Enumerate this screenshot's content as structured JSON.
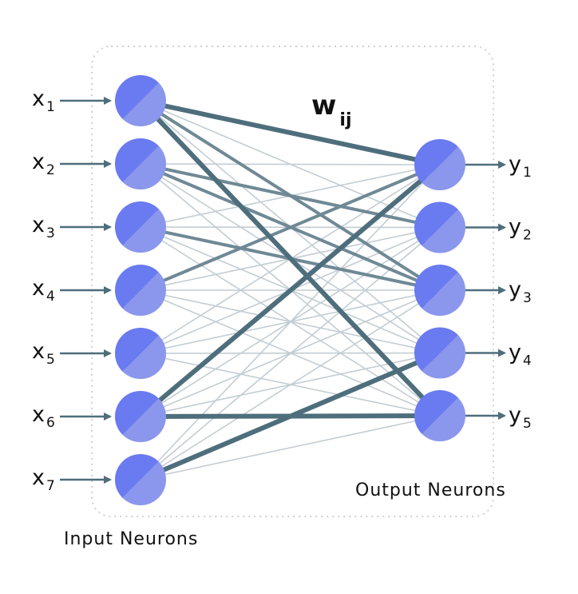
{
  "diagram": {
    "weight_label": {
      "main": "w",
      "sub": "ij"
    },
    "input_caption": "Input Neurons",
    "output_caption": "Output Neurons",
    "inputs": [
      {
        "main": "x",
        "sub": "1"
      },
      {
        "main": "x",
        "sub": "2"
      },
      {
        "main": "x",
        "sub": "3"
      },
      {
        "main": "x",
        "sub": "4"
      },
      {
        "main": "x",
        "sub": "5"
      },
      {
        "main": "x",
        "sub": "6"
      },
      {
        "main": "x",
        "sub": "7"
      }
    ],
    "outputs": [
      {
        "main": "y",
        "sub": "1"
      },
      {
        "main": "y",
        "sub": "2"
      },
      {
        "main": "y",
        "sub": "3"
      },
      {
        "main": "y",
        "sub": "4"
      },
      {
        "main": "y",
        "sub": "5"
      }
    ],
    "strong_connections": [
      {
        "from": 1,
        "to": 1
      },
      {
        "from": 1,
        "to": 5
      },
      {
        "from": 6,
        "to": 1
      },
      {
        "from": 6,
        "to": 5
      },
      {
        "from": 7,
        "to": 4
      }
    ],
    "medium_connections": [
      {
        "from": 1,
        "to": 3
      },
      {
        "from": 2,
        "to": 3
      },
      {
        "from": 3,
        "to": 3
      },
      {
        "from": 4,
        "to": 1
      },
      {
        "from": 2,
        "to": 2
      }
    ],
    "colors": {
      "neuron_dark": "#6a7af0",
      "neuron_light": "#8a97ec",
      "strong_edge": "#4e6e7c",
      "medium_edge": "#6f8995",
      "faint_edge": "#c3cdd3",
      "arrow": "#4e6e7c",
      "frame": "#cfcfcf"
    }
  }
}
